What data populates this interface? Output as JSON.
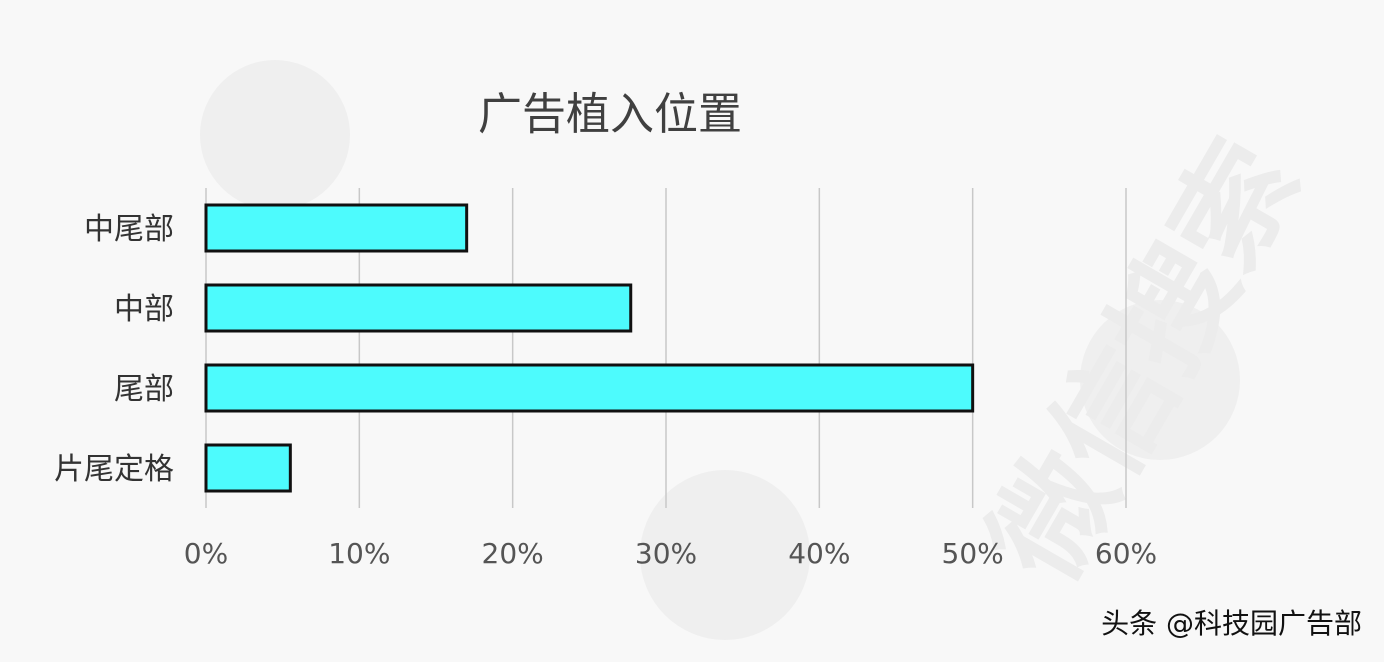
{
  "watermark": {
    "text": "微信搜索"
  },
  "chart_data": {
    "type": "bar",
    "orientation": "horizontal",
    "title": "广告植入位置",
    "categories": [
      "中尾部",
      "中部",
      "尾部",
      "片尾定格"
    ],
    "values": [
      17,
      27.7,
      50,
      5.5
    ],
    "unit": "%",
    "xlim": [
      0,
      60
    ],
    "xticks": [
      "0%",
      "10%",
      "20%",
      "30%",
      "40%",
      "50%",
      "60%"
    ],
    "xtick_values": [
      0,
      10,
      20,
      30,
      40,
      50,
      60
    ],
    "grid": "vertical",
    "bar_color": "#4dfbfd",
    "bar_edge_color": "#111111",
    "legend": "none"
  },
  "footer": {
    "credit": "头条 @科技园广告部"
  }
}
